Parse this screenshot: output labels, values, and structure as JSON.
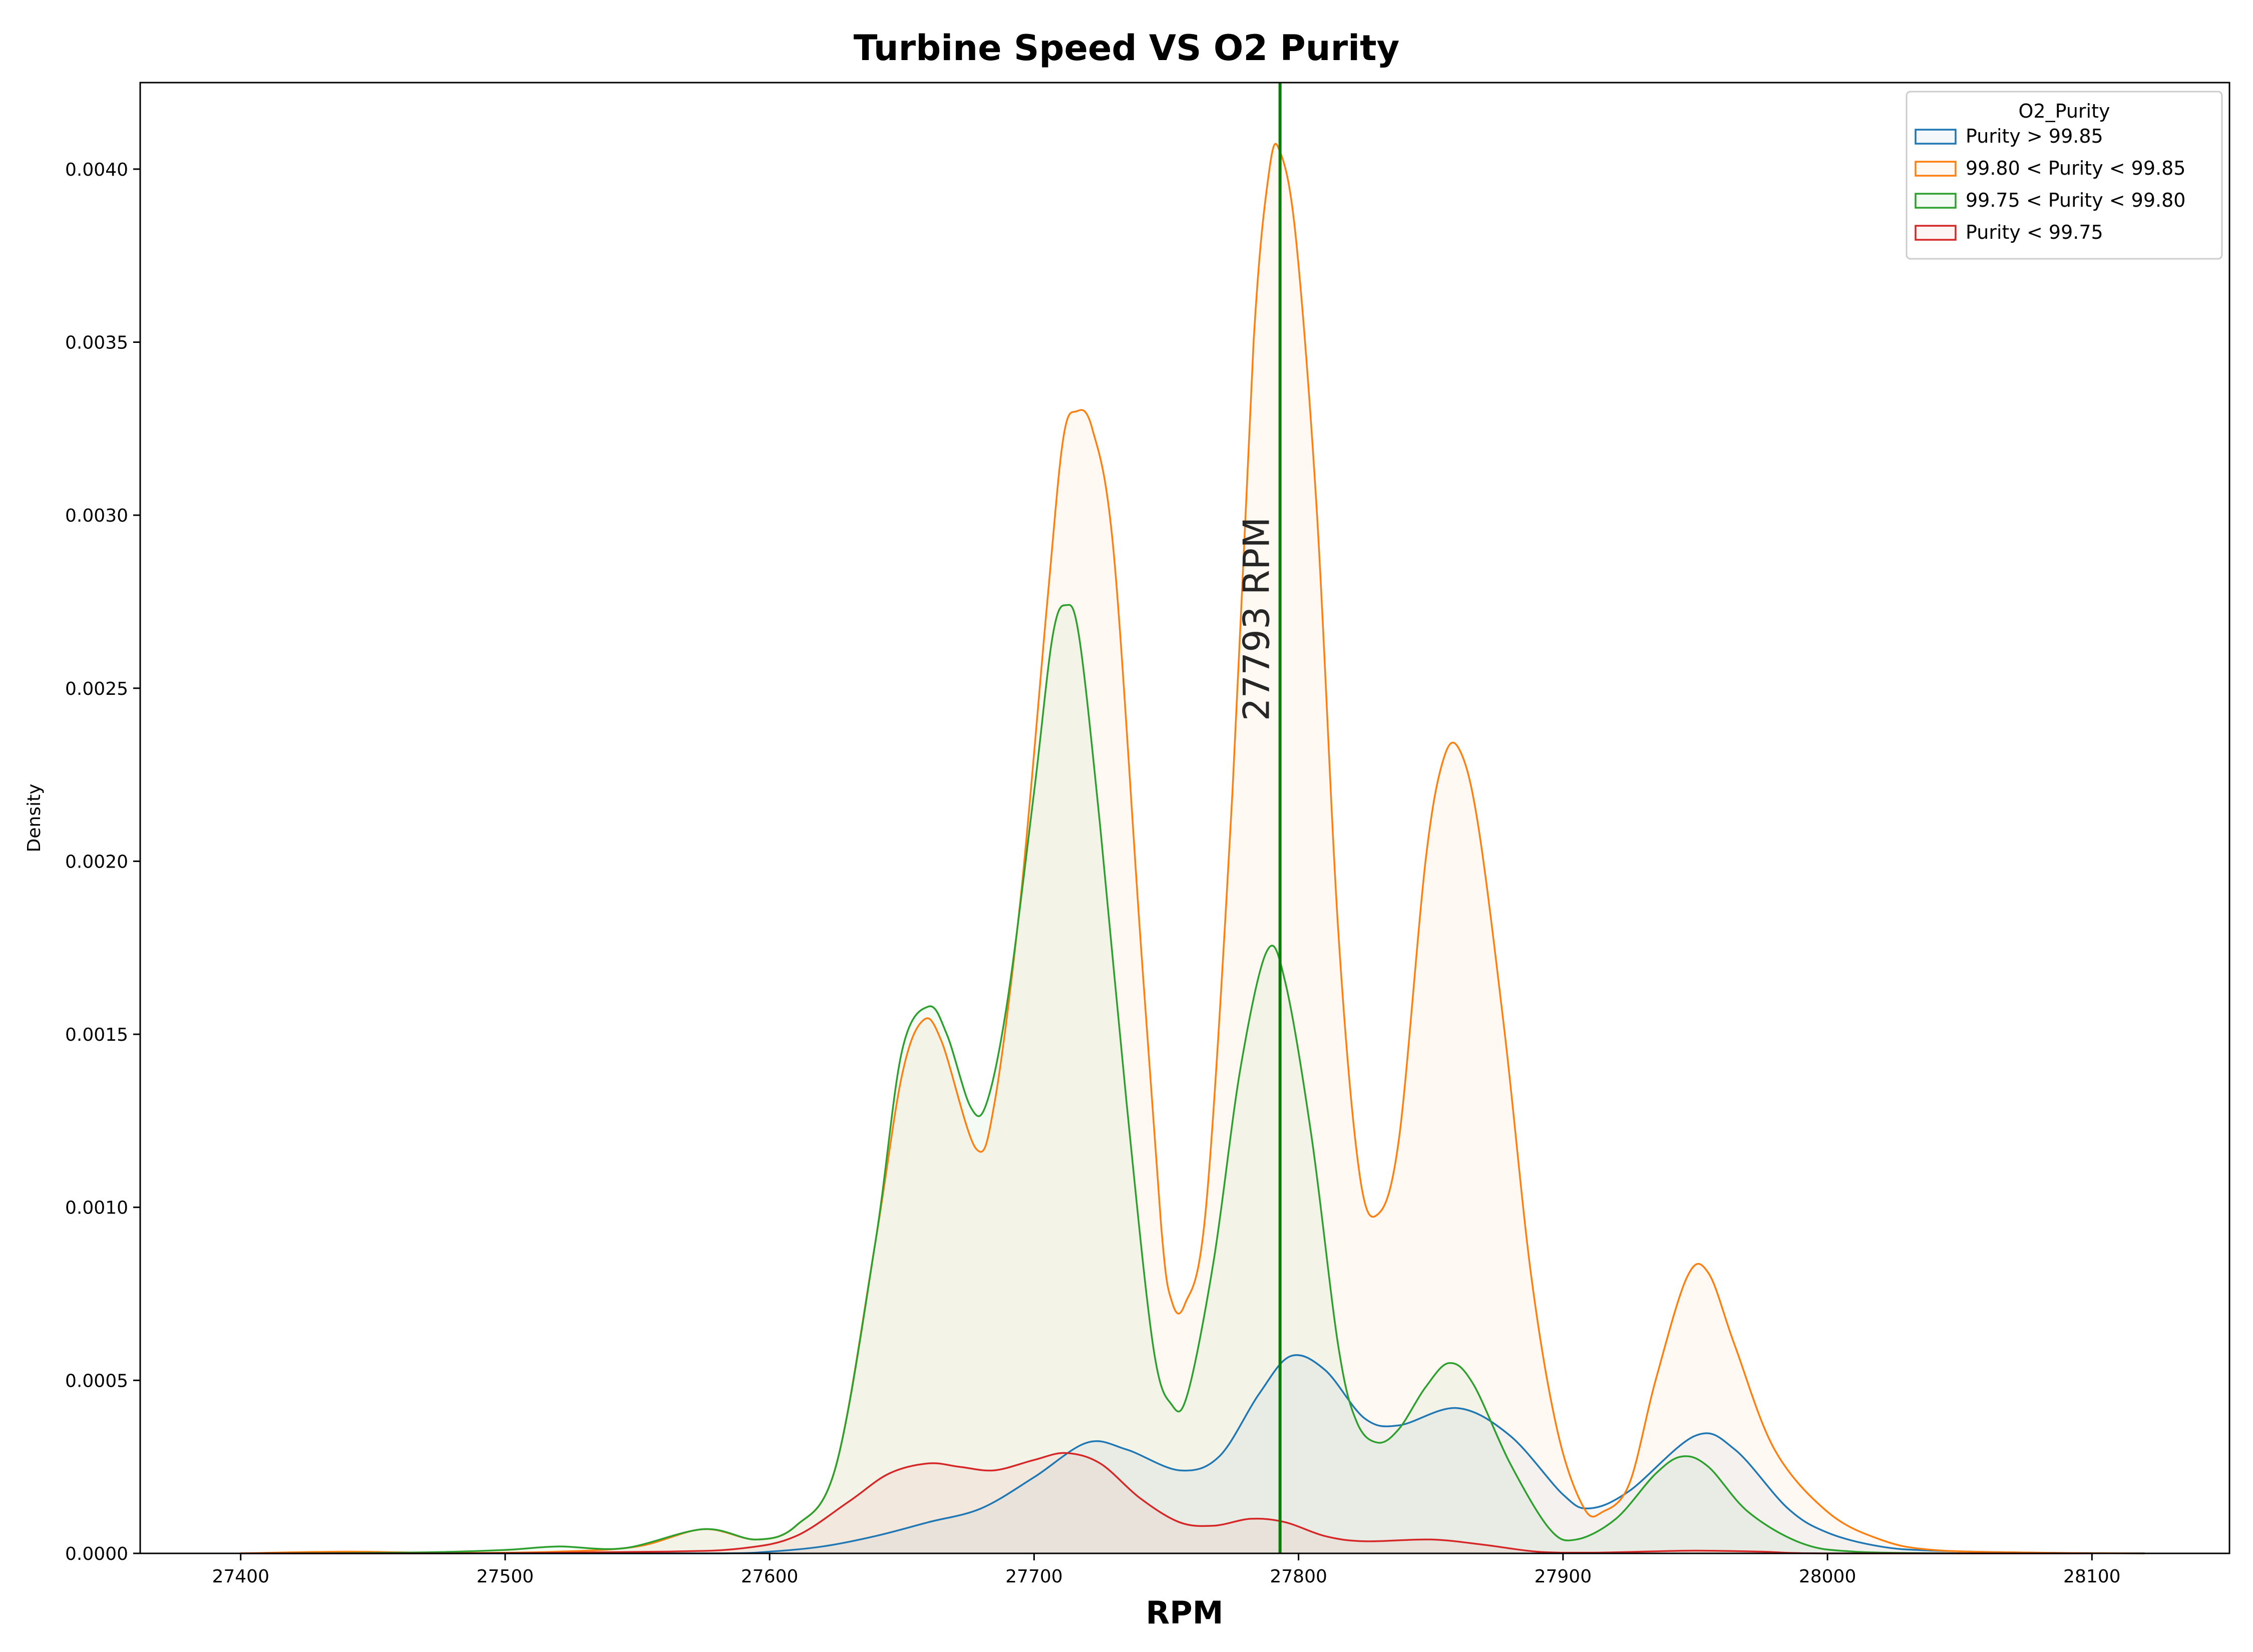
{
  "chart_data": {
    "type": "area",
    "title": "Turbine Speed VS O2 Purity",
    "xlabel": "RPM",
    "ylabel": "Density",
    "xlim": [
      27362,
      28152
    ],
    "ylim": [
      0,
      0.00425
    ],
    "xticks": [
      27400,
      27500,
      27600,
      27700,
      27800,
      27900,
      28000,
      28100
    ],
    "yticks": [
      0,
      0.0005,
      0.001,
      0.0015,
      0.002,
      0.0025,
      0.003,
      0.0035,
      0.004
    ],
    "xtick_labels": [
      "27400",
      "27500",
      "27600",
      "27700",
      "27800",
      "27900",
      "28000",
      "28100"
    ],
    "ytick_labels": [
      "0.0000",
      "0.0005",
      "0.0010",
      "0.0015",
      "0.0020",
      "0.0025",
      "0.0030",
      "0.0035",
      "0.0040"
    ],
    "grid": false,
    "legend": {
      "title": "O2_Purity",
      "placement": "top-right"
    },
    "vline": {
      "x": 27793,
      "color": "#008000",
      "label": "27793 RPM"
    },
    "series": [
      {
        "name": "Purity > 99.85",
        "color": "#1f77b4",
        "points": [
          [
            27400,
            0
          ],
          [
            27500,
            0
          ],
          [
            27580,
            0
          ],
          [
            27600,
            5e-06
          ],
          [
            27620,
            2e-05
          ],
          [
            27640,
            5e-05
          ],
          [
            27660,
            9e-05
          ],
          [
            27680,
            0.00013
          ],
          [
            27700,
            0.00022
          ],
          [
            27720,
            0.00032
          ],
          [
            27735,
            0.0003
          ],
          [
            27755,
            0.00024
          ],
          [
            27770,
            0.00028
          ],
          [
            27785,
            0.00046
          ],
          [
            27797,
            0.00057
          ],
          [
            27810,
            0.00053
          ],
          [
            27825,
            0.00039
          ],
          [
            27838,
            0.00037
          ],
          [
            27860,
            0.00042
          ],
          [
            27880,
            0.00034
          ],
          [
            27900,
            0.00017
          ],
          [
            27910,
            0.00013
          ],
          [
            27925,
            0.00018
          ],
          [
            27950,
            0.00034
          ],
          [
            27965,
            0.0003
          ],
          [
            27985,
            0.00013
          ],
          [
            28000,
            6e-05
          ],
          [
            28020,
            2e-05
          ],
          [
            28040,
            8e-06
          ],
          [
            28080,
            2e-06
          ],
          [
            28120,
            0
          ]
        ]
      },
      {
        "name": "99.80 < Purity < 99.85",
        "color": "#ff7f0e",
        "points": [
          [
            27400,
            0
          ],
          [
            27440,
            5e-06
          ],
          [
            27480,
            1e-06
          ],
          [
            27520,
            5e-06
          ],
          [
            27550,
            2e-05
          ],
          [
            27575,
            7e-05
          ],
          [
            27595,
            4e-05
          ],
          [
            27610,
            8e-05
          ],
          [
            27625,
            0.00025
          ],
          [
            27640,
            0.0009
          ],
          [
            27650,
            0.00138
          ],
          [
            27658,
            0.00154
          ],
          [
            27665,
            0.00148
          ],
          [
            27678,
            0.00117
          ],
          [
            27685,
            0.0013
          ],
          [
            27695,
            0.0019
          ],
          [
            27705,
            0.00275
          ],
          [
            27711,
            0.00322
          ],
          [
            27716,
            0.0033
          ],
          [
            27722,
            0.00325
          ],
          [
            27730,
            0.0029
          ],
          [
            27740,
            0.0018
          ],
          [
            27748,
            0.00095
          ],
          [
            27752,
            0.00073
          ],
          [
            27757,
            0.00072
          ],
          [
            27765,
            0.001
          ],
          [
            27775,
            0.0022
          ],
          [
            27783,
            0.0035
          ],
          [
            27789,
            0.004
          ],
          [
            27793,
            0.00405
          ],
          [
            27799,
            0.0038
          ],
          [
            27807,
            0.003
          ],
          [
            27815,
            0.0018
          ],
          [
            27823,
            0.0011
          ],
          [
            27830,
            0.00098
          ],
          [
            27838,
            0.0012
          ],
          [
            27848,
            0.002
          ],
          [
            27855,
            0.0023
          ],
          [
            27861,
            0.00232
          ],
          [
            27868,
            0.0021
          ],
          [
            27878,
            0.0015
          ],
          [
            27888,
            0.0008
          ],
          [
            27898,
            0.00035
          ],
          [
            27908,
            0.00013
          ],
          [
            27915,
            0.00012
          ],
          [
            27925,
            0.0002
          ],
          [
            27935,
            0.0005
          ],
          [
            27947,
            0.0008
          ],
          [
            27955,
            0.00081
          ],
          [
            27965,
            0.0006
          ],
          [
            27980,
            0.0003
          ],
          [
            28000,
            0.00012
          ],
          [
            28020,
            4e-05
          ],
          [
            28040,
            1e-05
          ],
          [
            28080,
            2e-06
          ],
          [
            28120,
            0
          ]
        ]
      },
      {
        "name": "99.75 < Purity < 99.80",
        "color": "#2ca02c",
        "points": [
          [
            27420,
            0
          ],
          [
            27470,
            3e-06
          ],
          [
            27500,
            1e-05
          ],
          [
            27520,
            2e-05
          ],
          [
            27545,
            1.5e-05
          ],
          [
            27575,
            7e-05
          ],
          [
            27595,
            4e-05
          ],
          [
            27610,
            8e-05
          ],
          [
            27625,
            0.00025
          ],
          [
            27640,
            0.0009
          ],
          [
            27650,
            0.00145
          ],
          [
            27660,
            0.00158
          ],
          [
            27667,
            0.0015
          ],
          [
            27676,
            0.00129
          ],
          [
            27682,
            0.0013
          ],
          [
            27690,
            0.0016
          ],
          [
            27700,
            0.0022
          ],
          [
            27707,
            0.00265
          ],
          [
            27712,
            0.00274
          ],
          [
            27717,
            0.00265
          ],
          [
            27725,
            0.0021
          ],
          [
            27735,
            0.0013
          ],
          [
            27745,
            0.0006
          ],
          [
            27752,
            0.00043
          ],
          [
            27758,
            0.00046
          ],
          [
            27768,
            0.00085
          ],
          [
            27778,
            0.0014
          ],
          [
            27788,
            0.00174
          ],
          [
            27795,
            0.00165
          ],
          [
            27805,
            0.0012
          ],
          [
            27815,
            0.0006
          ],
          [
            27822,
            0.00038
          ],
          [
            27830,
            0.00032
          ],
          [
            27838,
            0.00036
          ],
          [
            27848,
            0.00048
          ],
          [
            27857,
            0.00055
          ],
          [
            27866,
            0.00049
          ],
          [
            27880,
            0.00026
          ],
          [
            27895,
            7e-05
          ],
          [
            27905,
            4e-05
          ],
          [
            27920,
            0.0001
          ],
          [
            27935,
            0.00023
          ],
          [
            27945,
            0.00028
          ],
          [
            27955,
            0.00025
          ],
          [
            27970,
            0.00012
          ],
          [
            27990,
            3e-05
          ],
          [
            28010,
            5e-06
          ],
          [
            28050,
            0
          ]
        ]
      },
      {
        "name": "Purity < 99.75",
        "color": "#d62728",
        "points": [
          [
            27400,
            0
          ],
          [
            27480,
            0
          ],
          [
            27560,
            5e-06
          ],
          [
            27590,
            1.5e-05
          ],
          [
            27610,
            5e-05
          ],
          [
            27630,
            0.00015
          ],
          [
            27645,
            0.00023
          ],
          [
            27660,
            0.00026
          ],
          [
            27672,
            0.00025
          ],
          [
            27685,
            0.00024
          ],
          [
            27700,
            0.00027
          ],
          [
            27712,
            0.00029
          ],
          [
            27725,
            0.00026
          ],
          [
            27740,
            0.00016
          ],
          [
            27755,
            9e-05
          ],
          [
            27768,
            8e-05
          ],
          [
            27782,
            0.0001
          ],
          [
            27795,
            9e-05
          ],
          [
            27810,
            5e-05
          ],
          [
            27825,
            3.5e-05
          ],
          [
            27850,
            4e-05
          ],
          [
            27870,
            2.5e-05
          ],
          [
            27890,
            5e-06
          ],
          [
            27910,
            2e-06
          ],
          [
            27930,
            5e-06
          ],
          [
            27950,
            8e-06
          ],
          [
            27975,
            5e-06
          ],
          [
            28000,
            0
          ],
          [
            28100,
            0
          ]
        ]
      }
    ]
  }
}
